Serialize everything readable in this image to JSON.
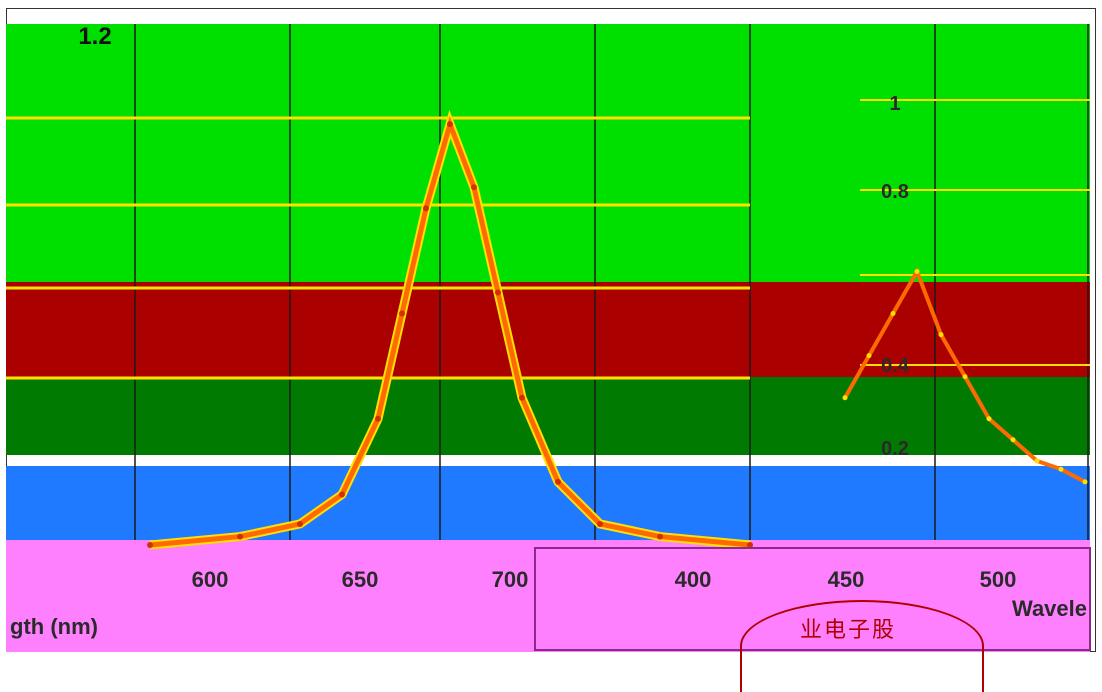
{
  "colors": {
    "band_top": "#00e000",
    "band_mid": "#aa0000",
    "band_low": "#007a00",
    "band_blue": "#1f7aff",
    "band_magenta": "#ff80ff",
    "curve": "#ff6a00",
    "curve_edge": "#ffe000",
    "dark_curve": "#4a7a00"
  },
  "panel_left": {
    "y_top_label": "1.2",
    "x_ticks": [
      "600",
      "650",
      "700"
    ],
    "xlabel_fragment": "gth (nm)"
  },
  "panel_right": {
    "y_ticks": [
      "1",
      "0.8",
      "0.4",
      "0.2"
    ],
    "x_ticks": [
      "400",
      "450",
      "500"
    ],
    "xlabel_fragment": "Wavele"
  },
  "stamp_text": "业电子股",
  "chart_data": [
    {
      "type": "line",
      "title": "",
      "xlabel": "Wavelength (nm)",
      "ylabel": "",
      "x": [
        600,
        615,
        625,
        632,
        638,
        642,
        646,
        650,
        654,
        658,
        662,
        668,
        675,
        685,
        700
      ],
      "series": [
        {
          "values": [
            0.0,
            0.02,
            0.05,
            0.12,
            0.3,
            0.55,
            0.8,
            1.0,
            0.85,
            0.6,
            0.35,
            0.15,
            0.05,
            0.02,
            0.0
          ]
        }
      ],
      "ylim": [
        0,
        1.2
      ],
      "grid": true
    },
    {
      "type": "line",
      "title": "",
      "xlabel": "Wavelength (nm)",
      "ylabel": "",
      "x": [
        400,
        410,
        420,
        430,
        440,
        450,
        460,
        470,
        480,
        490,
        500
      ],
      "series": [
        {
          "values": [
            0.35,
            0.45,
            0.55,
            0.65,
            0.5,
            0.4,
            0.3,
            0.25,
            0.2,
            0.18,
            0.15
          ]
        }
      ],
      "ylim": [
        0,
        1.2
      ],
      "grid": true
    }
  ]
}
